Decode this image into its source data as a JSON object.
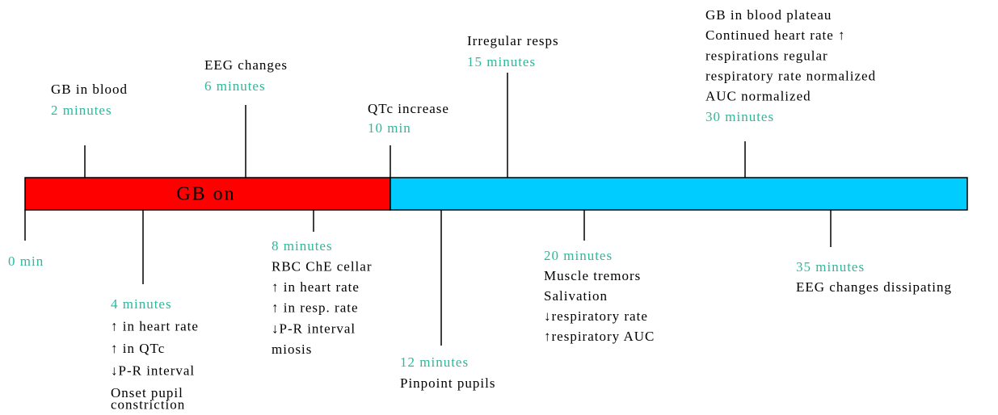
{
  "bar_label": "GB on",
  "events": [
    {
      "time": "0 min",
      "description": []
    },
    {
      "time": "2 minutes",
      "description": [
        "GB in blood"
      ]
    },
    {
      "time": "6 minutes",
      "description": [
        "EEG changes"
      ]
    },
    {
      "time": "10 min",
      "description": [
        "QTc increase"
      ]
    },
    {
      "time": "15 minutes",
      "description": [
        "Irregular resps"
      ]
    },
    {
      "time": "30 minutes",
      "description": [
        "GB in blood plateau",
        "Continued heart rate ↑",
        "respirations regular",
        "respiratory rate normalized",
        "AUC normalized"
      ]
    },
    {
      "time": "4 minutes",
      "description": [
        "↑ in heart rate",
        "↑ in QTc",
        "↓P-R interval",
        "Onset pupil",
        "constriction"
      ]
    },
    {
      "time": "8 minutes",
      "description": [
        "RBC ChE cellar",
        "↑ in heart rate",
        "↑ in resp. rate",
        "↓P-R interval",
        "miosis"
      ]
    },
    {
      "time": "12 minutes",
      "description": [
        "Pinpoint pupils"
      ]
    },
    {
      "time": "20 minutes",
      "description": [
        "Muscle tremors",
        "Salivation",
        "↓respiratory rate",
        "↑respiratory AUC"
      ]
    },
    {
      "time": "35 minutes",
      "description": [
        "EEG changes dissipating"
      ]
    }
  ]
}
